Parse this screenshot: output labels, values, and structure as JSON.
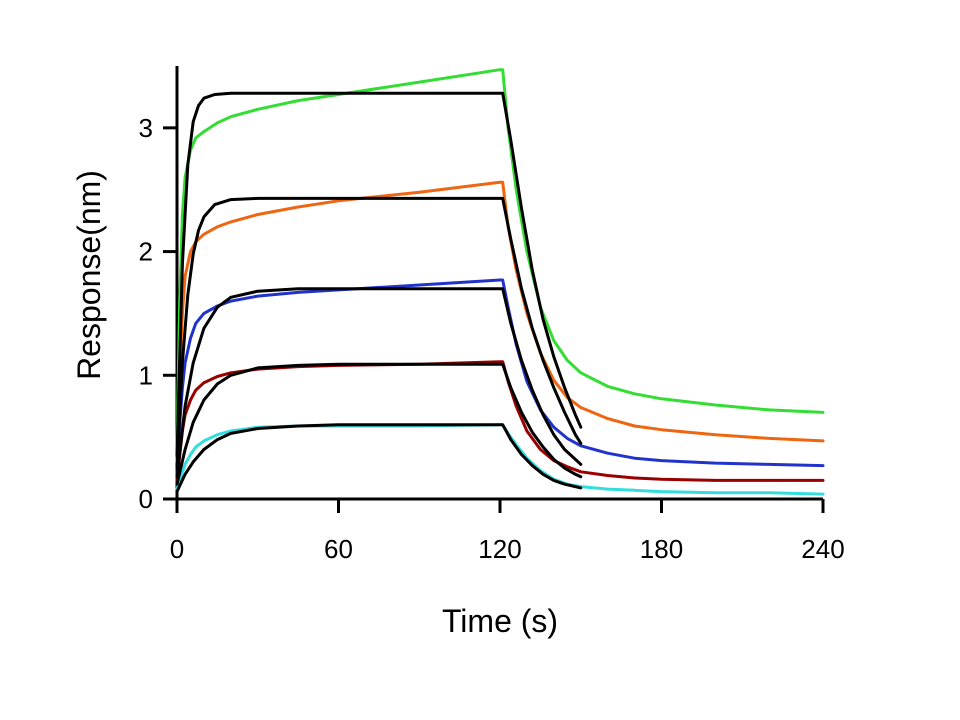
{
  "chart_data": {
    "type": "line",
    "title": "",
    "xlabel": "Time (s)",
    "ylabel": "Response(nm)",
    "xlim": [
      0,
      240
    ],
    "ylim": [
      0,
      3.5
    ],
    "x_ticks": [
      0,
      60,
      120,
      180,
      240
    ],
    "y_ticks": [
      0,
      1,
      2,
      3
    ],
    "grid": false,
    "legend": "none",
    "series": [
      {
        "color": "#33dd33",
        "kind": "measured",
        "points": [
          [
            0,
            0.4
          ],
          [
            1,
            1.6
          ],
          [
            2,
            2.3
          ],
          [
            3,
            2.6
          ],
          [
            5,
            2.82
          ],
          [
            7,
            2.92
          ],
          [
            10,
            2.97
          ],
          [
            15,
            3.04
          ],
          [
            20,
            3.09
          ],
          [
            30,
            3.15
          ],
          [
            45,
            3.22
          ],
          [
            60,
            3.27
          ],
          [
            90,
            3.37
          ],
          [
            120,
            3.47
          ],
          [
            121,
            3.47
          ],
          [
            123,
            3.0
          ],
          [
            126,
            2.5
          ],
          [
            130,
            2.0
          ],
          [
            135,
            1.55
          ],
          [
            140,
            1.28
          ],
          [
            145,
            1.12
          ],
          [
            150,
            1.02
          ],
          [
            160,
            0.91
          ],
          [
            170,
            0.85
          ],
          [
            180,
            0.81
          ],
          [
            200,
            0.76
          ],
          [
            220,
            0.72
          ],
          [
            240,
            0.7
          ]
        ]
      },
      {
        "color": "#ee6611",
        "kind": "measured",
        "points": [
          [
            0,
            0.3
          ],
          [
            1,
            1.0
          ],
          [
            2,
            1.5
          ],
          [
            3,
            1.8
          ],
          [
            5,
            2.0
          ],
          [
            7,
            2.08
          ],
          [
            10,
            2.14
          ],
          [
            15,
            2.2
          ],
          [
            20,
            2.24
          ],
          [
            30,
            2.3
          ],
          [
            45,
            2.36
          ],
          [
            60,
            2.41
          ],
          [
            90,
            2.48
          ],
          [
            120,
            2.56
          ],
          [
            121,
            2.56
          ],
          [
            123,
            2.2
          ],
          [
            126,
            1.85
          ],
          [
            130,
            1.5
          ],
          [
            135,
            1.18
          ],
          [
            140,
            0.96
          ],
          [
            145,
            0.82
          ],
          [
            150,
            0.74
          ],
          [
            160,
            0.65
          ],
          [
            170,
            0.59
          ],
          [
            180,
            0.56
          ],
          [
            200,
            0.52
          ],
          [
            220,
            0.49
          ],
          [
            240,
            0.47
          ]
        ]
      },
      {
        "color": "#2233cc",
        "kind": "measured",
        "points": [
          [
            0,
            0.2
          ],
          [
            1,
            0.6
          ],
          [
            2,
            0.9
          ],
          [
            3,
            1.1
          ],
          [
            5,
            1.3
          ],
          [
            7,
            1.42
          ],
          [
            10,
            1.5
          ],
          [
            15,
            1.56
          ],
          [
            20,
            1.6
          ],
          [
            30,
            1.64
          ],
          [
            45,
            1.67
          ],
          [
            60,
            1.69
          ],
          [
            90,
            1.73
          ],
          [
            120,
            1.77
          ],
          [
            121,
            1.77
          ],
          [
            123,
            1.55
          ],
          [
            126,
            1.25
          ],
          [
            130,
            0.95
          ],
          [
            135,
            0.72
          ],
          [
            140,
            0.58
          ],
          [
            145,
            0.49
          ],
          [
            150,
            0.43
          ],
          [
            160,
            0.37
          ],
          [
            170,
            0.33
          ],
          [
            180,
            0.31
          ],
          [
            200,
            0.29
          ],
          [
            220,
            0.28
          ],
          [
            240,
            0.27
          ]
        ]
      },
      {
        "color": "#990000",
        "kind": "measured",
        "points": [
          [
            0,
            0.15
          ],
          [
            1,
            0.35
          ],
          [
            2,
            0.55
          ],
          [
            3,
            0.68
          ],
          [
            5,
            0.8
          ],
          [
            7,
            0.88
          ],
          [
            10,
            0.94
          ],
          [
            15,
            0.99
          ],
          [
            20,
            1.02
          ],
          [
            30,
            1.05
          ],
          [
            45,
            1.07
          ],
          [
            60,
            1.08
          ],
          [
            90,
            1.09
          ],
          [
            120,
            1.11
          ],
          [
            121,
            1.11
          ],
          [
            123,
            0.95
          ],
          [
            126,
            0.75
          ],
          [
            130,
            0.55
          ],
          [
            135,
            0.4
          ],
          [
            140,
            0.31
          ],
          [
            145,
            0.26
          ],
          [
            150,
            0.22
          ],
          [
            160,
            0.19
          ],
          [
            170,
            0.17
          ],
          [
            180,
            0.16
          ],
          [
            200,
            0.15
          ],
          [
            220,
            0.15
          ],
          [
            240,
            0.15
          ]
        ]
      },
      {
        "color": "#33dddd",
        "kind": "measured",
        "points": [
          [
            0,
            0.08
          ],
          [
            1,
            0.15
          ],
          [
            2,
            0.22
          ],
          [
            3,
            0.28
          ],
          [
            5,
            0.36
          ],
          [
            7,
            0.42
          ],
          [
            10,
            0.47
          ],
          [
            15,
            0.52
          ],
          [
            20,
            0.55
          ],
          [
            30,
            0.58
          ],
          [
            45,
            0.59
          ],
          [
            60,
            0.59
          ],
          [
            90,
            0.59
          ],
          [
            120,
            0.6
          ],
          [
            121,
            0.6
          ],
          [
            123,
            0.53
          ],
          [
            126,
            0.44
          ],
          [
            130,
            0.33
          ],
          [
            135,
            0.23
          ],
          [
            140,
            0.16
          ],
          [
            145,
            0.12
          ],
          [
            150,
            0.1
          ],
          [
            160,
            0.08
          ],
          [
            170,
            0.07
          ],
          [
            180,
            0.06
          ],
          [
            200,
            0.05
          ],
          [
            220,
            0.05
          ],
          [
            240,
            0.04
          ]
        ]
      },
      {
        "color": "#000000",
        "kind": "fit",
        "points": [
          [
            0,
            0.35
          ],
          [
            2,
            1.9
          ],
          [
            4,
            2.7
          ],
          [
            6,
            3.05
          ],
          [
            8,
            3.18
          ],
          [
            10,
            3.24
          ],
          [
            14,
            3.27
          ],
          [
            20,
            3.28
          ],
          [
            60,
            3.28
          ],
          [
            120,
            3.28
          ],
          [
            121,
            3.28
          ],
          [
            124,
            2.9
          ],
          [
            128,
            2.35
          ],
          [
            132,
            1.85
          ],
          [
            136,
            1.45
          ],
          [
            140,
            1.15
          ],
          [
            144,
            0.9
          ],
          [
            148,
            0.68
          ],
          [
            150,
            0.58
          ]
        ]
      },
      {
        "color": "#000000",
        "kind": "fit",
        "points": [
          [
            0,
            0.25
          ],
          [
            2,
            1.1
          ],
          [
            4,
            1.65
          ],
          [
            6,
            1.98
          ],
          [
            8,
            2.17
          ],
          [
            10,
            2.28
          ],
          [
            14,
            2.38
          ],
          [
            20,
            2.42
          ],
          [
            30,
            2.43
          ],
          [
            60,
            2.43
          ],
          [
            120,
            2.43
          ],
          [
            121,
            2.43
          ],
          [
            124,
            2.1
          ],
          [
            128,
            1.7
          ],
          [
            132,
            1.38
          ],
          [
            136,
            1.12
          ],
          [
            140,
            0.9
          ],
          [
            144,
            0.7
          ],
          [
            148,
            0.52
          ],
          [
            150,
            0.45
          ]
        ]
      },
      {
        "color": "#000000",
        "kind": "fit",
        "points": [
          [
            0,
            0.18
          ],
          [
            3,
            0.75
          ],
          [
            6,
            1.1
          ],
          [
            10,
            1.38
          ],
          [
            15,
            1.55
          ],
          [
            20,
            1.63
          ],
          [
            30,
            1.68
          ],
          [
            45,
            1.7
          ],
          [
            60,
            1.7
          ],
          [
            120,
            1.7
          ],
          [
            121,
            1.7
          ],
          [
            124,
            1.42
          ],
          [
            128,
            1.12
          ],
          [
            132,
            0.88
          ],
          [
            136,
            0.68
          ],
          [
            140,
            0.52
          ],
          [
            144,
            0.4
          ],
          [
            148,
            0.32
          ],
          [
            150,
            0.28
          ]
        ]
      },
      {
        "color": "#000000",
        "kind": "fit",
        "points": [
          [
            0,
            0.12
          ],
          [
            3,
            0.4
          ],
          [
            6,
            0.62
          ],
          [
            10,
            0.8
          ],
          [
            15,
            0.93
          ],
          [
            20,
            1.0
          ],
          [
            30,
            1.06
          ],
          [
            45,
            1.08
          ],
          [
            60,
            1.09
          ],
          [
            120,
            1.09
          ],
          [
            121,
            1.09
          ],
          [
            124,
            0.9
          ],
          [
            128,
            0.7
          ],
          [
            132,
            0.54
          ],
          [
            136,
            0.42
          ],
          [
            140,
            0.32
          ],
          [
            144,
            0.25
          ],
          [
            148,
            0.2
          ],
          [
            150,
            0.18
          ]
        ]
      },
      {
        "color": "#000000",
        "kind": "fit",
        "points": [
          [
            0,
            0.06
          ],
          [
            3,
            0.2
          ],
          [
            6,
            0.3
          ],
          [
            10,
            0.4
          ],
          [
            15,
            0.48
          ],
          [
            20,
            0.53
          ],
          [
            30,
            0.57
          ],
          [
            45,
            0.59
          ],
          [
            60,
            0.6
          ],
          [
            120,
            0.6
          ],
          [
            121,
            0.6
          ],
          [
            124,
            0.48
          ],
          [
            128,
            0.36
          ],
          [
            132,
            0.27
          ],
          [
            136,
            0.2
          ],
          [
            140,
            0.15
          ],
          [
            144,
            0.12
          ],
          [
            148,
            0.1
          ],
          [
            150,
            0.09
          ]
        ]
      }
    ]
  }
}
